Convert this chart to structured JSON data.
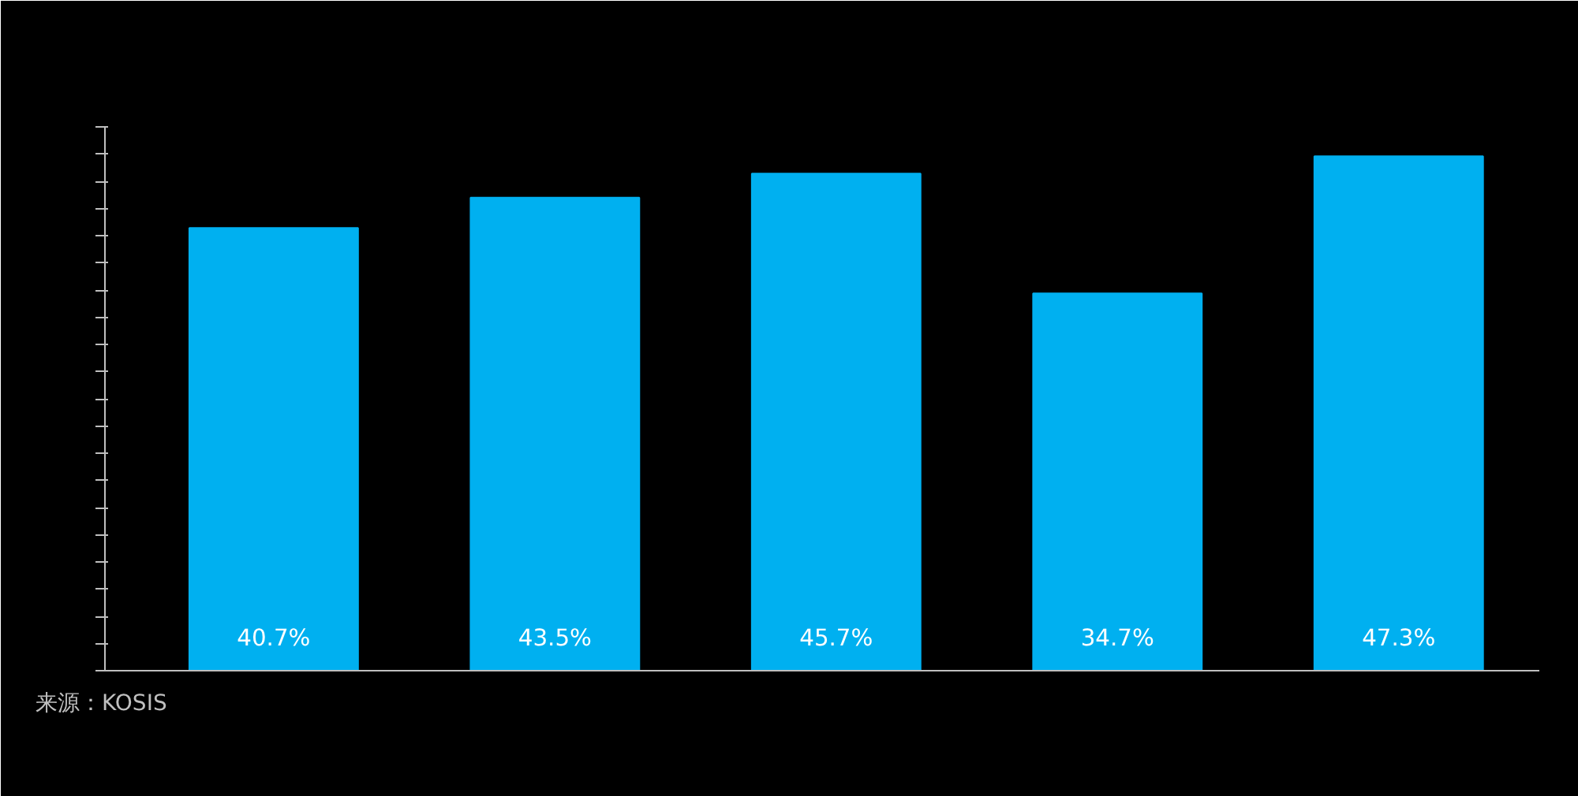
{
  "chart_data": {
    "type": "bar",
    "categories": [
      null,
      null,
      null,
      null,
      null
    ],
    "values": [
      40.7,
      43.5,
      45.7,
      34.7,
      47.3
    ],
    "color": "#00b0f0",
    "value_labels": [
      "40.7%",
      "43.5%",
      "45.7%",
      "34.7%",
      "47.3%"
    ],
    "ylim": [
      0,
      50
    ],
    "yticks": [
      {
        "value": 0,
        "label": null
      },
      {
        "value": 2.5,
        "label": null
      },
      {
        "value": 5,
        "label": null
      },
      {
        "value": 7.5,
        "label": null
      },
      {
        "value": 10,
        "label": null
      },
      {
        "value": 12.5,
        "label": null
      },
      {
        "value": 15,
        "label": null
      },
      {
        "value": 17.5,
        "label": null
      },
      {
        "value": 20,
        "label": null
      },
      {
        "value": 22.5,
        "label": null
      },
      {
        "value": 25,
        "label": null
      },
      {
        "value": 27.5,
        "label": null
      },
      {
        "value": 30,
        "label": null
      },
      {
        "value": 32.5,
        "label": null
      },
      {
        "value": 35,
        "label": null
      },
      {
        "value": 37.5,
        "label": null
      },
      {
        "value": 40,
        "label": null
      },
      {
        "value": 42.5,
        "label": null
      },
      {
        "value": 45,
        "label": null
      },
      {
        "value": 47.5,
        "label": null
      },
      {
        "value": 50,
        "label": null
      }
    ],
    "grid": false,
    "annotations": [
      "来源：KOSIS"
    ]
  }
}
